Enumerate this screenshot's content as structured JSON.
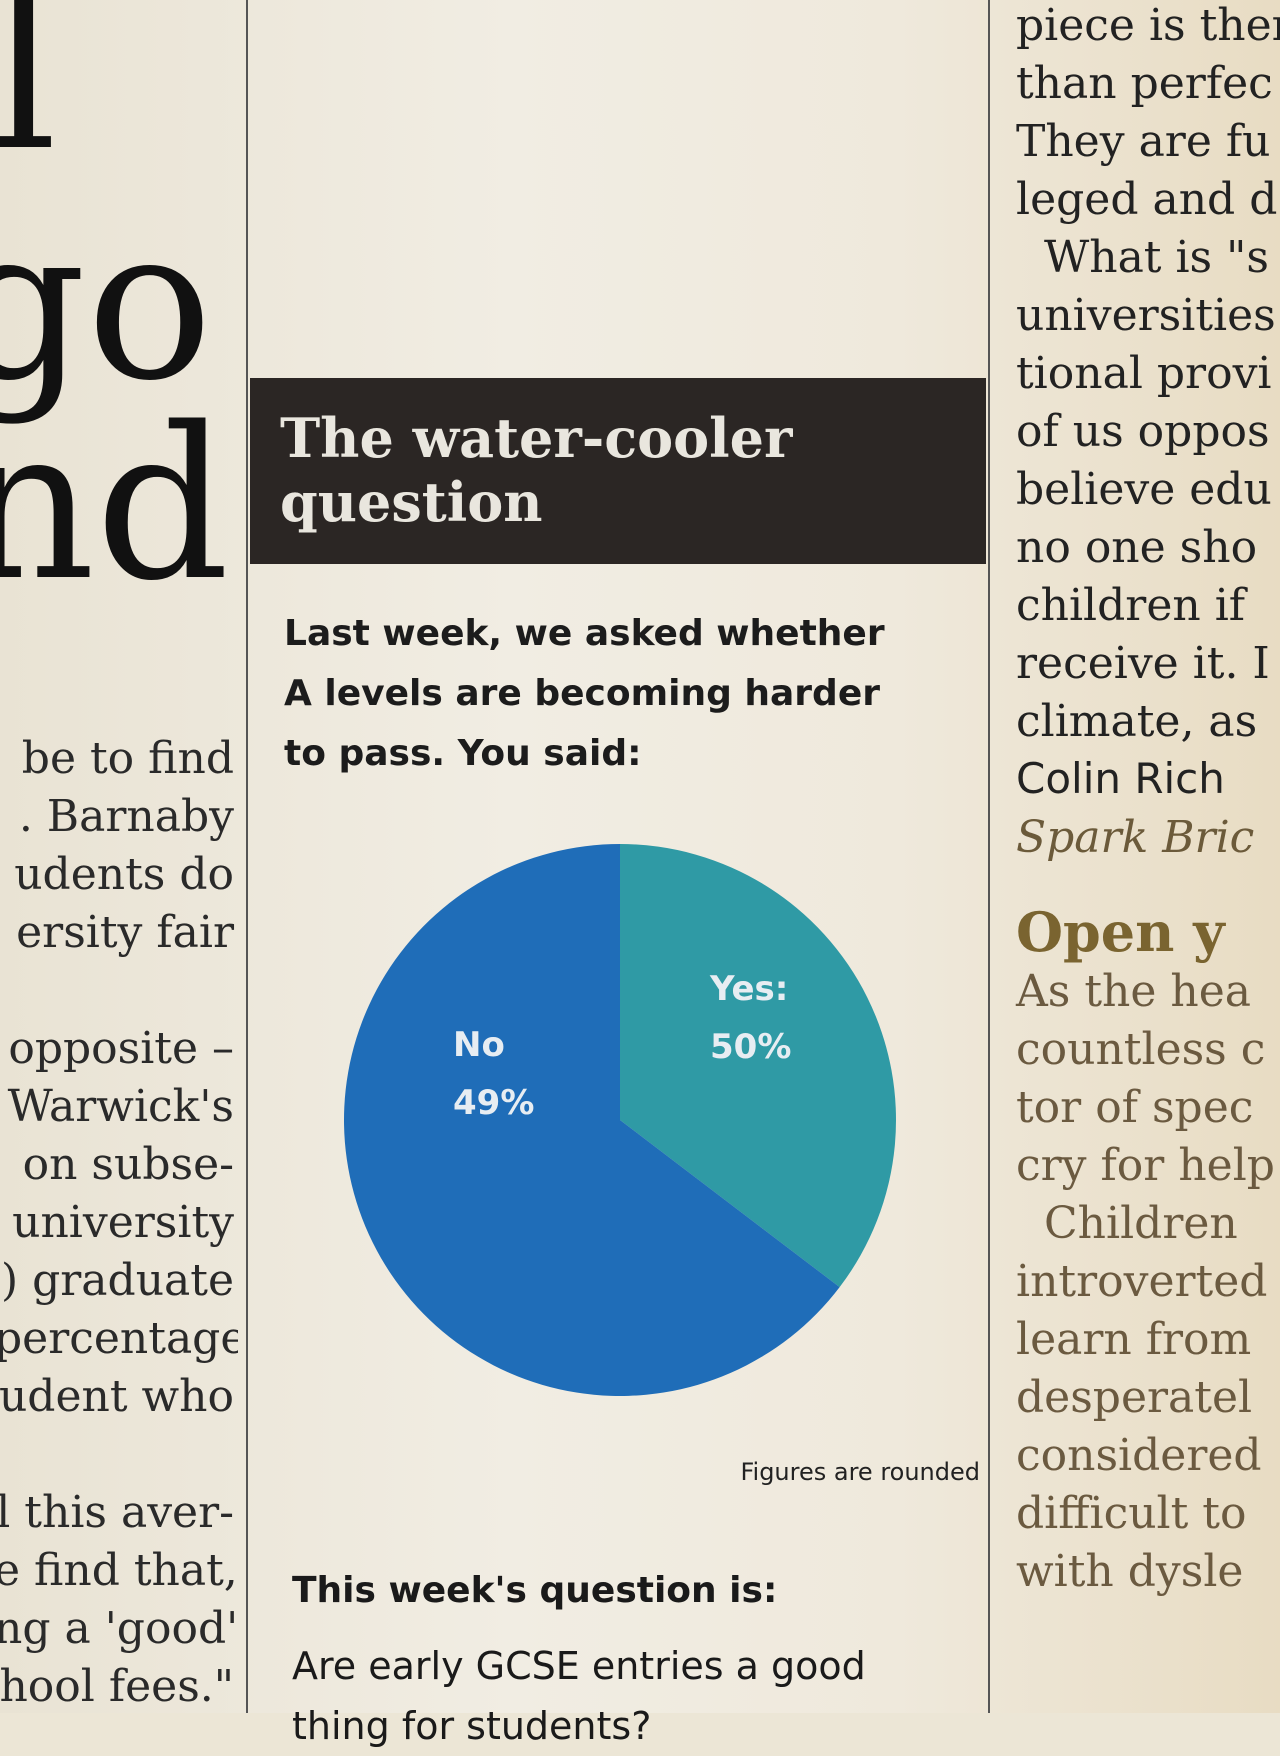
{
  "left": {
    "big": [
      "l",
      "go",
      "nd"
    ],
    "lines": [
      "be to find",
      ". Barnaby",
      "udents do",
      "ersity fair",
      "",
      "opposite –",
      "Warwick's",
      "on subse-",
      "university",
      ") graduate",
      "percentage",
      "udent who",
      "",
      "l this aver-",
      "e find that,",
      "ng a 'good'",
      "hool fees.\""
    ]
  },
  "panel": {
    "title_line1": "The water-cooler",
    "title_line2": "question",
    "intro_lines": [
      "Last week, we asked whether",
      "A levels are becoming harder",
      "to pass. You said:"
    ],
    "note": "Figures are rounded",
    "this_week": "This week's question is:",
    "next_question": "Are early GCSE entries a good",
    "next_question_cont": "thing for students?"
  },
  "chart_data": {
    "type": "pie",
    "slices": [
      {
        "label": "Yes:",
        "value": 50,
        "value_text": "50%",
        "color": "#2f9aa5"
      },
      {
        "label": "No",
        "value": 49,
        "value_text": "49%",
        "color": "#1f6db8"
      }
    ],
    "colors": {
      "yes": "#2f9aa5",
      "no": "#1f6db8"
    }
  },
  "right": {
    "lines": [
      "piece is then",
      "than perfec",
      "They are fu",
      "leged and d",
      "What is \"s",
      "universities",
      "tional provi",
      "of us oppos",
      "believe edu",
      "no one sho",
      "children if",
      "receive it. I",
      "climate, as",
      "Colin Rich",
      "Spark Bric",
      "Open y",
      "As the hea",
      "countless c",
      "tor of spec",
      "cry for help",
      "Children",
      "introverted",
      "learn from",
      "desperatel",
      "considered",
      "difficult to",
      "with dysle"
    ]
  }
}
